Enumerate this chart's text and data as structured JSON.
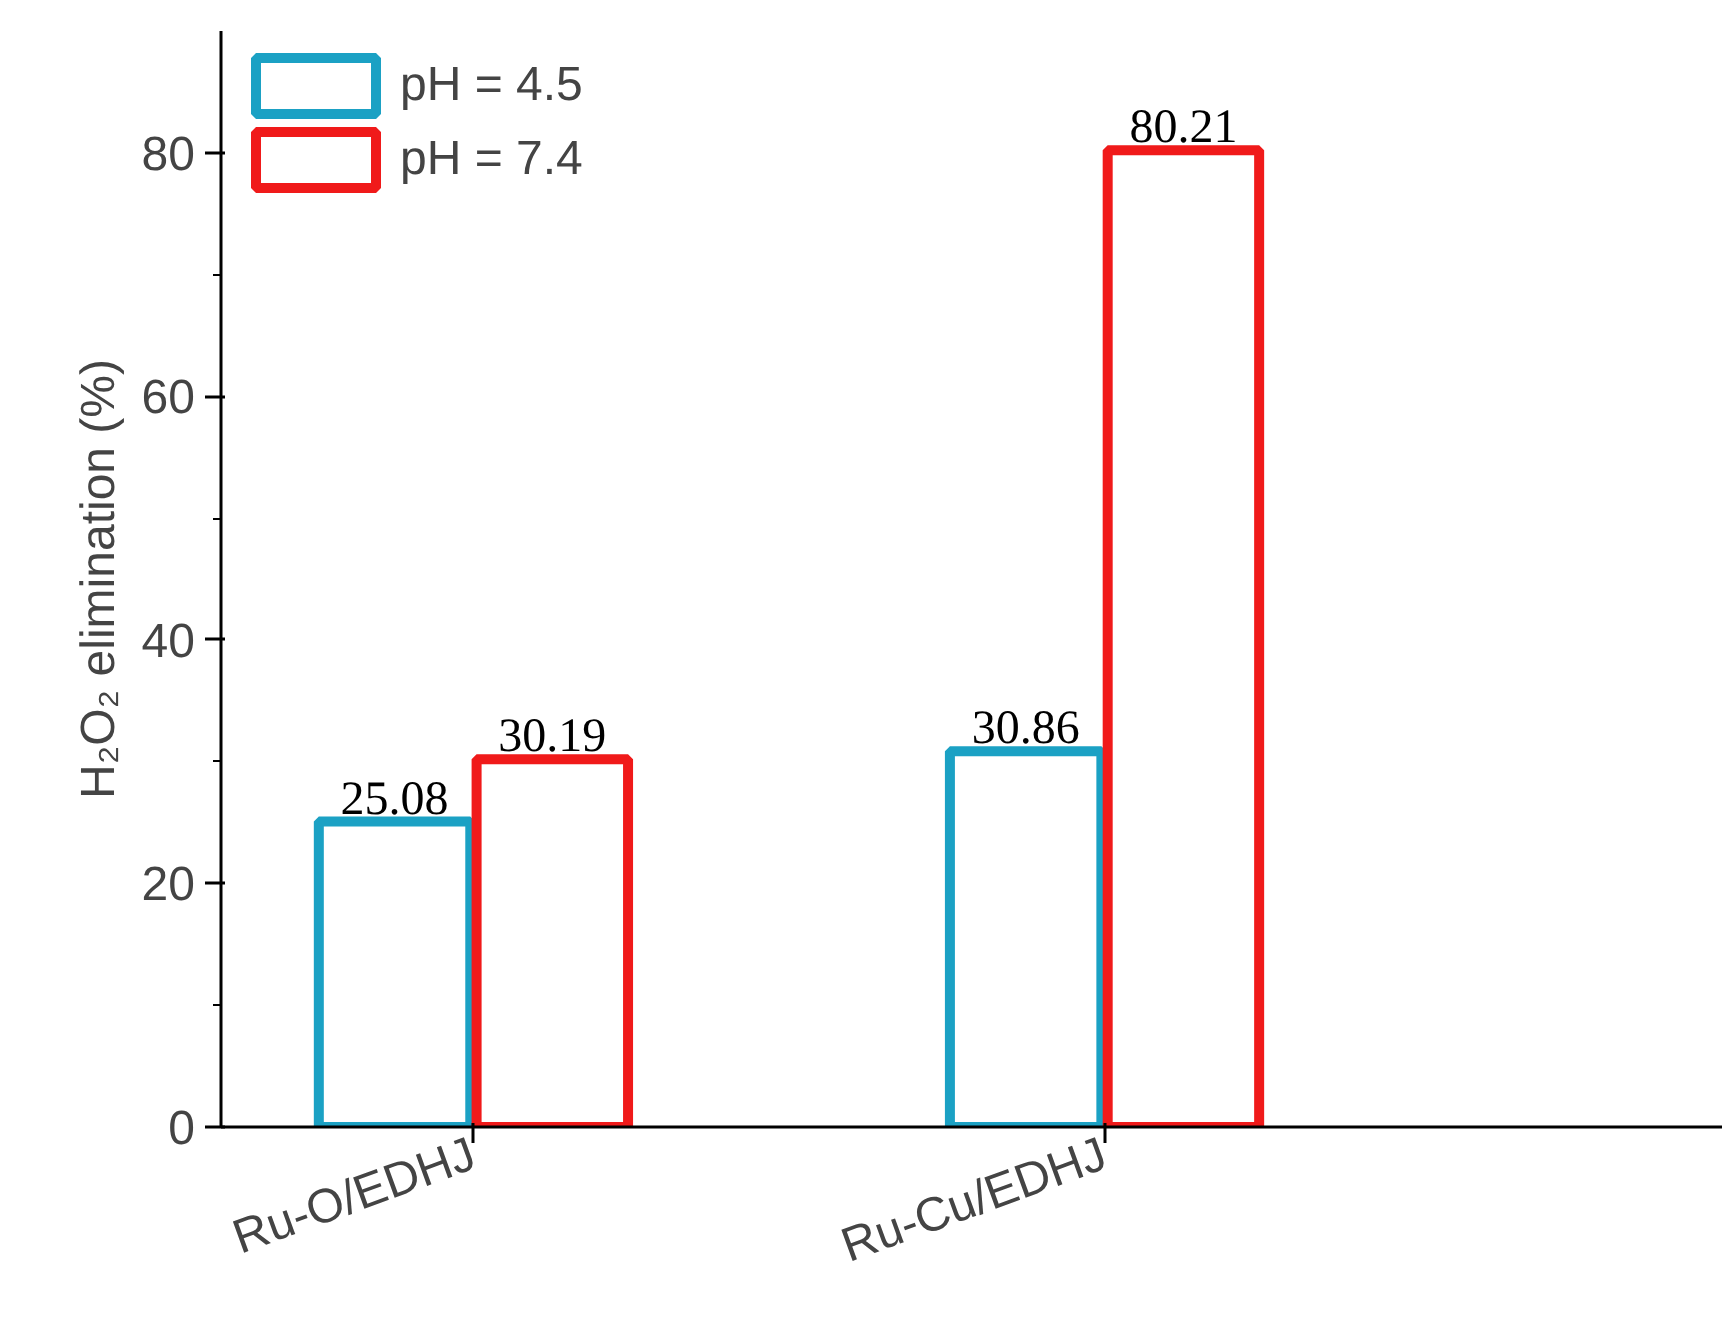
{
  "chart_data": {
    "type": "bar",
    "categories": [
      "Ru-O/EDHJ",
      "Ru-Cu/EDHJ"
    ],
    "ylabel": "H₂O₂ elimination (%)",
    "series": [
      {
        "name": "pH = 4.5",
        "color": "#1ba1c4",
        "values": [
          25.08,
          30.86
        ]
      },
      {
        "name": "pH = 7.4",
        "color": "#f01a1a",
        "values": [
          30.19,
          80.21
        ]
      }
    ],
    "ylim": [
      0,
      90
    ],
    "yticks": [
      0,
      {
        "value": 10,
        "label": null
      },
      20,
      {
        "value": 30,
        "label": null
      },
      40,
      {
        "value": 50,
        "label": null
      },
      60,
      {
        "value": 70,
        "label": null
      },
      80
    ],
    "data_labels": true,
    "legend": "top left",
    "grid": false
  }
}
